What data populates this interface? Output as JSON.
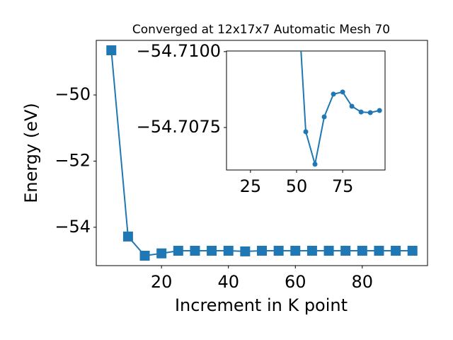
{
  "chart_data": [
    {
      "type": "line",
      "title": "Converged at 12x17x7 Automatic Mesh 70",
      "x_label": "Increment in K point",
      "y_label": "Energy (eV)",
      "x": [
        5,
        10,
        15,
        20,
        25,
        30,
        35,
        40,
        45,
        50,
        55,
        60,
        65,
        70,
        75,
        80,
        85,
        90,
        95
      ],
      "series": [
        {
          "color": "#1f77b4",
          "marker": "square",
          "values": [
            -48.65,
            -54.28,
            -54.86,
            -54.79,
            -54.71,
            -54.71,
            -54.71,
            -54.71,
            -54.73,
            -54.71,
            -54.71,
            -54.71,
            -54.71,
            -54.71,
            -54.71,
            -54.71,
            -54.71,
            -54.71,
            -54.71
          ]
        }
      ],
      "xlim": [
        0.5,
        99.5
      ],
      "ylim": [
        -55.16,
        -48.35
      ],
      "xticks": [
        20,
        40,
        60,
        80
      ],
      "yticks": [
        {
          "value": -54,
          "label": "−54"
        },
        {
          "value": -52,
          "label": "−52"
        },
        {
          "value": -50,
          "label": "−50"
        }
      ]
    },
    {
      "type": "line",
      "x": [
        50,
        55,
        60,
        65,
        70,
        75,
        80,
        85,
        90,
        95
      ],
      "series": [
        {
          "color": "#1f77b4",
          "marker": "circle",
          "values": [
            -54.7125,
            -54.70736,
            -54.70629,
            -54.70785,
            -54.7086,
            -54.70867,
            -54.7082,
            -54.70801,
            -54.70799,
            -54.70806
          ]
        }
      ],
      "xlim": [
        12,
        98
      ],
      "ylim": [
        -54.7061,
        -54.71002
      ],
      "xticks": [
        25,
        50,
        75
      ],
      "yticks": [
        {
          "value": -54.7075,
          "label": "−54.7075"
        },
        {
          "value": -54.71,
          "label": "−54.7100"
        }
      ]
    }
  ]
}
